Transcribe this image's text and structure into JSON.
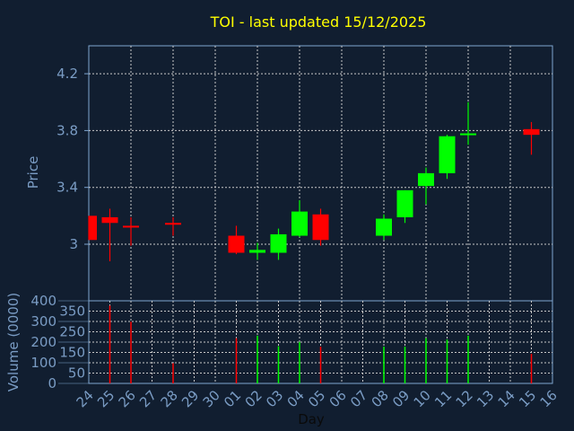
{
  "chart_data": [
    {
      "type": "candlestick",
      "title": "TOI - last updated 15/12/2025",
      "ylabel": "Price",
      "ylim": [
        2.8,
        4.4
      ],
      "yticks": [
        "3",
        "3.4",
        "3.8",
        "4.2"
      ],
      "ytick_values": [
        3.0,
        3.4,
        3.8,
        4.2
      ],
      "grid": true,
      "colors": {
        "up": "#00ff00",
        "down": "#ff0000"
      },
      "candles": [
        {
          "day": "24",
          "open": 3.2,
          "high": 3.2,
          "low": 3.03,
          "close": 3.03
        },
        {
          "day": "25",
          "open": 3.19,
          "high": 3.25,
          "low": 2.88,
          "close": 3.15
        },
        {
          "day": "26",
          "open": 3.13,
          "high": 3.19,
          "low": 2.99,
          "close": 3.12
        },
        {
          "day": "28",
          "open": 3.15,
          "high": 3.19,
          "low": 3.06,
          "close": 3.14
        },
        {
          "day": "01",
          "open": 3.06,
          "high": 3.13,
          "low": 2.93,
          "close": 2.94
        },
        {
          "day": "02",
          "open": 2.94,
          "high": 3.01,
          "low": 2.89,
          "close": 2.96
        },
        {
          "day": "03",
          "open": 2.94,
          "high": 3.11,
          "low": 2.89,
          "close": 3.07
        },
        {
          "day": "04",
          "open": 3.06,
          "high": 3.31,
          "low": 3.05,
          "close": 3.23
        },
        {
          "day": "05",
          "open": 3.21,
          "high": 3.25,
          "low": 2.99,
          "close": 3.03
        },
        {
          "day": "08",
          "open": 3.06,
          "high": 3.21,
          "low": 3.03,
          "close": 3.18
        },
        {
          "day": "09",
          "open": 3.19,
          "high": 3.38,
          "low": 3.15,
          "close": 3.38
        },
        {
          "day": "10",
          "open": 3.41,
          "high": 3.54,
          "low": 3.28,
          "close": 3.5
        },
        {
          "day": "11",
          "open": 3.5,
          "high": 3.77,
          "low": 3.46,
          "close": 3.76
        },
        {
          "day": "12",
          "open": 3.77,
          "high": 4.0,
          "low": 3.7,
          "close": 3.78
        },
        {
          "day": "15",
          "open": 3.81,
          "high": 3.86,
          "low": 3.63,
          "close": 3.77
        }
      ]
    },
    {
      "type": "bar",
      "ylabel": "Volume (0000)",
      "xlabel": "Day",
      "ylim": [
        0,
        400
      ],
      "yticks": [
        "0",
        "50",
        "100",
        "150",
        "200",
        "250",
        "300",
        "350",
        "400"
      ],
      "categories": [
        "24",
        "25",
        "26",
        "27",
        "28",
        "29",
        "30",
        "01",
        "02",
        "03",
        "04",
        "05",
        "06",
        "07",
        "08",
        "09",
        "10",
        "11",
        "12",
        "13",
        "14",
        "15",
        "16"
      ],
      "bars": [
        {
          "day": "25",
          "value": 377,
          "dir": "down"
        },
        {
          "day": "26",
          "value": 299,
          "dir": "down"
        },
        {
          "day": "28",
          "value": 98,
          "dir": "down"
        },
        {
          "day": "01",
          "value": 219,
          "dir": "down"
        },
        {
          "day": "02",
          "value": 231,
          "dir": "up"
        },
        {
          "day": "03",
          "value": 180,
          "dir": "up"
        },
        {
          "day": "04",
          "value": 201,
          "dir": "up"
        },
        {
          "day": "05",
          "value": 178,
          "dir": "down"
        },
        {
          "day": "08",
          "value": 178,
          "dir": "up"
        },
        {
          "day": "09",
          "value": 178,
          "dir": "up"
        },
        {
          "day": "10",
          "value": 219,
          "dir": "up"
        },
        {
          "day": "11",
          "value": 213,
          "dir": "up"
        },
        {
          "day": "12",
          "value": 231,
          "dir": "up"
        },
        {
          "day": "15",
          "value": 143,
          "dir": "down"
        }
      ]
    }
  ]
}
